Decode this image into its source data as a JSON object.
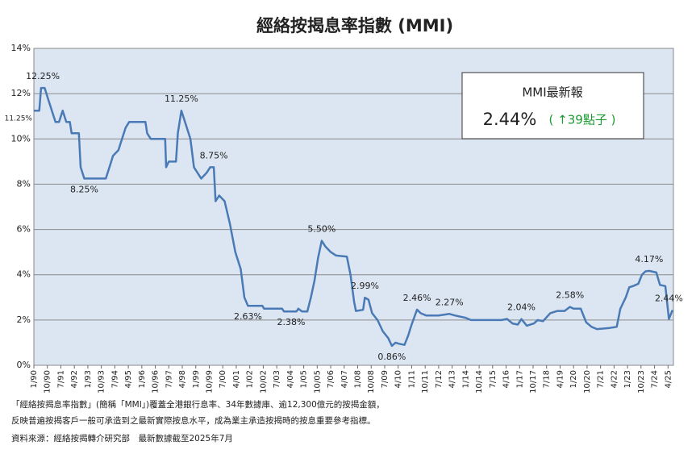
{
  "chart_data": {
    "type": "line",
    "title": "經絡按揭息率指數 (MMI)",
    "grid": true,
    "xlim": [
      1990,
      2025.55
    ],
    "ylim": [
      0,
      14
    ],
    "yticks": [
      {
        "value": 0,
        "label": "0%"
      },
      {
        "value": 2,
        "label": "2%"
      },
      {
        "value": 4,
        "label": "4%"
      },
      {
        "value": 6,
        "label": "6%"
      },
      {
        "value": 8,
        "label": "8%"
      },
      {
        "value": 10,
        "label": "10%"
      },
      {
        "value": 12,
        "label": "12%"
      },
      {
        "value": 14,
        "label": "14%"
      }
    ],
    "xticks": [
      {
        "value": 1990,
        "label": "1/90"
      },
      {
        "value": 1990.75,
        "label": "10/90"
      },
      {
        "value": 1991.5,
        "label": "7/91"
      },
      {
        "value": 1992.25,
        "label": "4/92"
      },
      {
        "value": 1993,
        "label": "1/93"
      },
      {
        "value": 1993.75,
        "label": "10/93"
      },
      {
        "value": 1994.5,
        "label": "7/94"
      },
      {
        "value": 1995.25,
        "label": "4/95"
      },
      {
        "value": 1996,
        "label": "1/96"
      },
      {
        "value": 1996.75,
        "label": "10/96"
      },
      {
        "value": 1997.5,
        "label": "7/97"
      },
      {
        "value": 1998.25,
        "label": "4/98"
      },
      {
        "value": 1999,
        "label": "1/99"
      },
      {
        "value": 1999.75,
        "label": "10/99"
      },
      {
        "value": 2000.5,
        "label": "7/00"
      },
      {
        "value": 2001.25,
        "label": "4/01"
      },
      {
        "value": 2002,
        "label": "1/02"
      },
      {
        "value": 2002.75,
        "label": "10/02"
      },
      {
        "value": 2003.5,
        "label": "7/03"
      },
      {
        "value": 2004.25,
        "label": "4/04"
      },
      {
        "value": 2005,
        "label": "1/05"
      },
      {
        "value": 2005.75,
        "label": "10/05"
      },
      {
        "value": 2006.5,
        "label": "7/06"
      },
      {
        "value": 2007.25,
        "label": "4/07"
      },
      {
        "value": 2008,
        "label": "1/08"
      },
      {
        "value": 2008.75,
        "label": "10/08"
      },
      {
        "value": 2009.5,
        "label": "7/09"
      },
      {
        "value": 2010.25,
        "label": "4/10"
      },
      {
        "value": 2011,
        "label": "1/11"
      },
      {
        "value": 2011.75,
        "label": "10/11"
      },
      {
        "value": 2012.5,
        "label": "7/12"
      },
      {
        "value": 2013.25,
        "label": "4/13"
      },
      {
        "value": 2014,
        "label": "1/14"
      },
      {
        "value": 2014.75,
        "label": "10/14"
      },
      {
        "value": 2015.5,
        "label": "7/15"
      },
      {
        "value": 2016.25,
        "label": "4/16"
      },
      {
        "value": 2017,
        "label": "1/17"
      },
      {
        "value": 2017.75,
        "label": "10/17"
      },
      {
        "value": 2018.5,
        "label": "7/18"
      },
      {
        "value": 2019.25,
        "label": "4/19"
      },
      {
        "value": 2020,
        "label": "1/20"
      },
      {
        "value": 2020.75,
        "label": "10/20"
      },
      {
        "value": 2021.5,
        "label": "7/21"
      },
      {
        "value": 2022.25,
        "label": "4/22"
      },
      {
        "value": 2023,
        "label": "1/23"
      },
      {
        "value": 2023.75,
        "label": "10/23"
      },
      {
        "value": 2024.5,
        "label": "7/24"
      },
      {
        "value": 2025.25,
        "label": "4/25"
      }
    ],
    "x": [
      1990.0,
      1990.3,
      1990.4,
      1990.6,
      1990.8,
      1991.0,
      1991.2,
      1991.4,
      1991.6,
      1991.8,
      1992.0,
      1992.1,
      1992.5,
      1992.6,
      1992.8,
      1994.0,
      1994.2,
      1994.4,
      1994.7,
      1994.9,
      1995.1,
      1995.3,
      1996.2,
      1996.3,
      1996.5,
      1997.3,
      1997.35,
      1997.5,
      1997.9,
      1998.0,
      1998.2,
      1998.4,
      1998.7,
      1998.9,
      1999.1,
      1999.3,
      1999.6,
      1999.8,
      2000.0,
      2000.1,
      2000.3,
      2000.6,
      2000.9,
      2001.2,
      2001.5,
      2001.7,
      2001.9,
      2002.7,
      2002.8,
      2003.8,
      2003.9,
      2004.6,
      2004.7,
      2004.9,
      2005.2,
      2005.4,
      2005.6,
      2005.8,
      2006.0,
      2006.2,
      2006.5,
      2006.8,
      2007.4,
      2007.6,
      2007.8,
      2007.9,
      2008.3,
      2008.4,
      2008.6,
      2008.8,
      2009.1,
      2009.4,
      2009.7,
      2009.9,
      2010.1,
      2010.3,
      2010.6,
      2010.8,
      2011.0,
      2011.3,
      2011.5,
      2011.8,
      2012.5,
      2013.1,
      2013.4,
      2014.0,
      2014.3,
      2015.0,
      2016.0,
      2016.3,
      2016.6,
      2016.9,
      2017.1,
      2017.4,
      2017.8,
      2018.0,
      2018.3,
      2018.7,
      2019.1,
      2019.5,
      2019.8,
      2020.0,
      2020.4,
      2020.7,
      2021.0,
      2021.3,
      2022.0,
      2022.4,
      2022.6,
      2022.9,
      2023.1,
      2023.3,
      2023.6,
      2023.8,
      2024.0,
      2024.2,
      2024.6,
      2024.8,
      2025.1,
      2025.3,
      2025.5
    ],
    "series": [
      {
        "name": "MMI",
        "color": "#4a7ab5",
        "values": [
          11.25,
          11.25,
          12.25,
          12.25,
          11.75,
          11.25,
          10.75,
          10.75,
          11.25,
          10.75,
          10.75,
          10.25,
          10.25,
          8.75,
          8.25,
          8.25,
          8.75,
          9.25,
          9.5,
          10.0,
          10.5,
          10.75,
          10.75,
          10.25,
          10.0,
          10.0,
          8.75,
          9.0,
          9.0,
          10.25,
          11.25,
          10.75,
          10.0,
          8.75,
          8.5,
          8.25,
          8.5,
          8.75,
          8.75,
          7.25,
          7.5,
          7.25,
          6.25,
          5.0,
          4.25,
          3.0,
          2.63,
          2.63,
          2.5,
          2.5,
          2.38,
          2.38,
          2.5,
          2.38,
          2.38,
          3.0,
          3.75,
          4.75,
          5.5,
          5.25,
          5.0,
          4.85,
          4.8,
          4.0,
          2.8,
          2.4,
          2.45,
          2.99,
          2.9,
          2.3,
          2.0,
          1.5,
          1.2,
          0.86,
          1.0,
          0.95,
          0.9,
          1.3,
          1.8,
          2.46,
          2.3,
          2.2,
          2.2,
          2.27,
          2.2,
          2.1,
          2.0,
          2.0,
          2.0,
          2.05,
          1.85,
          1.8,
          2.04,
          1.75,
          1.85,
          2.0,
          1.95,
          2.3,
          2.4,
          2.4,
          2.58,
          2.5,
          2.5,
          1.9,
          1.7,
          1.6,
          1.65,
          1.7,
          2.5,
          3.0,
          3.45,
          3.5,
          3.6,
          4.0,
          4.15,
          4.17,
          4.1,
          3.55,
          3.5,
          2.05,
          2.44
        ]
      }
    ],
    "annotations": [
      {
        "text": "12.25%",
        "x": 1990.5,
        "y": 12.25,
        "position": "above"
      },
      {
        "text": "11.25%",
        "x": 1990,
        "y": 11.25,
        "position": "left"
      },
      {
        "text": "8.25%",
        "x": 1992.8,
        "y": 8.25,
        "position": "below"
      },
      {
        "text": "11.25%",
        "x": 1998.2,
        "y": 11.25,
        "position": "above"
      },
      {
        "text": "8.75%",
        "x": 2000.0,
        "y": 8.75,
        "position": "above"
      },
      {
        "text": "2.63%",
        "x": 2001.9,
        "y": 2.63,
        "position": "below"
      },
      {
        "text": "2.38%",
        "x": 2004.3,
        "y": 2.38,
        "position": "below"
      },
      {
        "text": "5.50%",
        "x": 2006.0,
        "y": 5.5,
        "position": "above"
      },
      {
        "text": "2.99%",
        "x": 2008.4,
        "y": 2.99,
        "position": "above"
      },
      {
        "text": "0.86%",
        "x": 2009.9,
        "y": 0.86,
        "position": "below"
      },
      {
        "text": "2.46%",
        "x": 2011.3,
        "y": 2.46,
        "position": "above"
      },
      {
        "text": "2.27%",
        "x": 2013.1,
        "y": 2.27,
        "position": "above"
      },
      {
        "text": "2.04%",
        "x": 2017.1,
        "y": 2.04,
        "position": "above"
      },
      {
        "text": "2.58%",
        "x": 2019.8,
        "y": 2.58,
        "position": "above"
      },
      {
        "text": "4.17%",
        "x": 2024.2,
        "y": 4.17,
        "position": "above"
      },
      {
        "text": "2.44%",
        "x": 2025.3,
        "y": 2.44,
        "position": "above"
      }
    ]
  },
  "info_box": {
    "title": "MMI最新報",
    "value": "2.44%",
    "change": "( ↑39點子 )"
  },
  "footnotes": [
    "「經絡按揭息率指數」(簡稱「MMI」)覆蓋全港銀行息率、34年數據庫、逾12,300億元的按揭金額，",
    "反映普遍按揭客戶一般可承造到之最新實際按息水平，成為業主承造按揭時的按息重要參考指標。",
    "資料來源：經絡按揭轉介研究部　最新數據截至2025年7月"
  ]
}
